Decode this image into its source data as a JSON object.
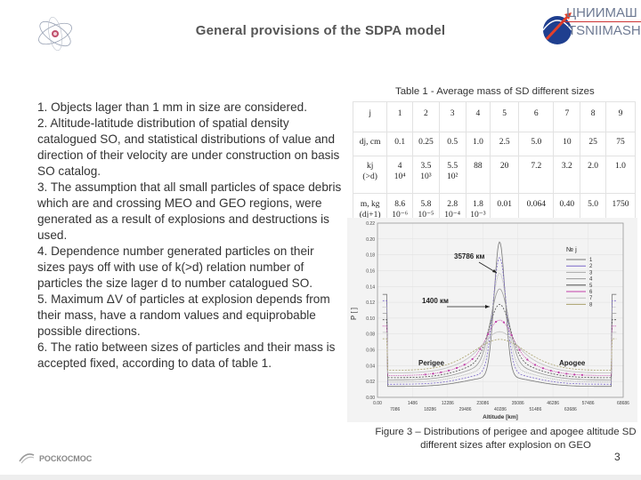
{
  "header": {
    "title": "General provisions of the SDPA model",
    "logo_line1": "ЦНИИМАШ",
    "logo_line2": "TSNIIMASH"
  },
  "body": {
    "items": [
      "1. Objects lager than 1 mm in size are considered.",
      "2. Altitude-latitude distribution of spatial density catalogued SO, and statistical distributions of value and direction of their velocity are under construction on basis SO catalog.",
      "3. The assumption that all small particles of space debris which are and crossing MEO and GEO regions, were generated as a result of explosions and destructions is used.",
      "4. Dependence number generated particles on their sizes pays off with use of k(>d) relation number of particles the size lager d to number catalogued SO.",
      "5. Maximum ΔV of particles at explosion depends from their mass, have a random values and equiprobable possible directions.",
      "6. The ratio between sizes of particles and their mass is accepted fixed, according to data of table 1."
    ]
  },
  "table": {
    "caption": "Table 1 - Average mass of SD different sizes",
    "rows": [
      [
        "j",
        "1",
        "2",
        "3",
        "4",
        "5",
        "6",
        "7",
        "8",
        "9"
      ],
      [
        "dj, cm",
        "0.1",
        "0.25",
        "0.5",
        "1.0",
        "2.5",
        "5.0",
        "10",
        "25",
        "75"
      ],
      [
        "kj\n(>d)",
        "4\n10⁴",
        "3.5\n10³",
        "5.5\n10²",
        "88",
        "20",
        "7.2",
        "3.2",
        "2.0",
        "1.0"
      ],
      [
        "m, kg\n(dj+1)",
        "8.6\n10⁻⁶",
        "5.8\n10⁻⁵",
        "2.8\n10⁻⁴",
        "1.8\n10⁻³",
        "0.01",
        "0.064",
        "0.40",
        "5.0",
        "1750"
      ]
    ]
  },
  "figure": {
    "ylabel": "P [ ]",
    "xlabel": "Altitude [km]",
    "ann_geo": "35786 км",
    "ann_width": "1400 км",
    "label_perigee": "Perigee",
    "label_apogee": "Apogee",
    "legend_title": "№ j",
    "legend_items": [
      "1",
      "2",
      "3",
      "4",
      "5",
      "6",
      "7",
      "8"
    ],
    "legend_colors": [
      "#777777",
      "#7b68c9",
      "#a9a9a9",
      "#999999",
      "#4d4d4d",
      "#c23fa8",
      "#c0c0c0",
      "#a8a06a"
    ],
    "caption": "Figure 3 – Distributions of perigee  and apogee altitude SD different sizes after explosion on GEO"
  },
  "chart_data": {
    "type": "line",
    "xlabel": "Altitude [km]",
    "ylabel": "P [ ]",
    "xlim": [
      0,
      72000
    ],
    "ylim": [
      0,
      0.22
    ],
    "x_ticks_top": [
      "0.00",
      "1486",
      "12286",
      "23086",
      "35086",
      "46286",
      "57486",
      "68686"
    ],
    "x_ticks_bottom": [
      "7086",
      "18286",
      "29486",
      "40286",
      "51486",
      "63686"
    ],
    "y_ticks": [
      "0.00",
      "0.02",
      "0.04",
      "0.06",
      "0.08",
      "0.10",
      "0.12",
      "0.14",
      "0.16",
      "0.18",
      "0.20",
      "0.22"
    ],
    "legend_title": "№ j",
    "series": [
      {
        "name": "1",
        "color": "#777777",
        "peak": 0.195,
        "base": 0.025,
        "width": 1600
      },
      {
        "name": "2",
        "color": "#7b68c9",
        "peak": 0.175,
        "base": 0.03,
        "width": 1900
      },
      {
        "name": "3",
        "color": "#a9a9a9",
        "peak": 0.155,
        "base": 0.035,
        "width": 2200
      },
      {
        "name": "4",
        "color": "#999999",
        "peak": 0.135,
        "base": 0.04,
        "width": 2600
      },
      {
        "name": "5",
        "color": "#4d4d4d",
        "peak": 0.115,
        "base": 0.045,
        "width": 3000
      },
      {
        "name": "6",
        "color": "#c23fa8",
        "peak": 0.095,
        "base": 0.05,
        "width": 3600
      },
      {
        "name": "7",
        "color": "#c0c0c0",
        "peak": 0.08,
        "base": 0.056,
        "width": 4200
      },
      {
        "name": "8",
        "color": "#a8a06a",
        "peak": 0.07,
        "base": 0.062,
        "width": 5000
      }
    ]
  },
  "footer": {
    "page_number": "3",
    "brand": "РОСКОСМОС"
  }
}
